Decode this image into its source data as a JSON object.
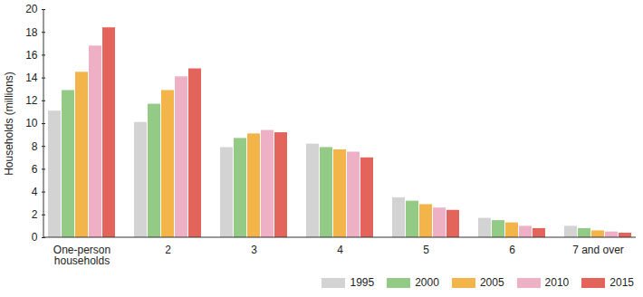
{
  "chart_data": {
    "type": "bar",
    "ylabel": "Households (millions)",
    "categories": [
      "One-person households",
      "2",
      "3",
      "4",
      "5",
      "6",
      "7 and over"
    ],
    "series": [
      {
        "name": "1995",
        "color": "#d3d3d3",
        "values": [
          11.1,
          10.1,
          7.9,
          8.2,
          3.5,
          1.7,
          1.0
        ]
      },
      {
        "name": "2000",
        "color": "#93ca85",
        "values": [
          12.9,
          11.7,
          8.7,
          7.9,
          3.2,
          1.5,
          0.8
        ]
      },
      {
        "name": "2005",
        "color": "#f3b44a",
        "values": [
          14.5,
          12.9,
          9.1,
          7.7,
          2.9,
          1.3,
          0.6
        ]
      },
      {
        "name": "2010",
        "color": "#eeb0c4",
        "values": [
          16.8,
          14.1,
          9.4,
          7.5,
          2.6,
          1.0,
          0.5
        ]
      },
      {
        "name": "2015",
        "color": "#e2645b",
        "values": [
          18.4,
          14.8,
          9.2,
          7.0,
          2.4,
          0.8,
          0.4
        ]
      }
    ],
    "ylim": [
      0,
      20
    ],
    "yticks": [
      0,
      2,
      4,
      6,
      8,
      10,
      12,
      14,
      16,
      18,
      20
    ],
    "grid": false,
    "legend": "bottom-right"
  }
}
